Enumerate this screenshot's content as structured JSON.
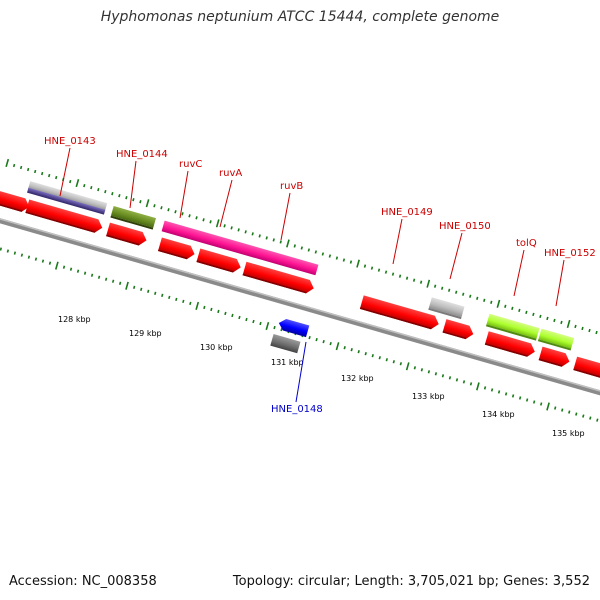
{
  "title": "Hyphomonas neptunium ATCC 15444, complete genome",
  "footer": {
    "accession": "Accession: NC_008358",
    "stats": "Topology: circular; Length: 3,705,021 bp; Genes: 3,552"
  },
  "colors": {
    "forward_gene": "#ff0000",
    "label_red": "#cc0000",
    "label_blue": "#0000cc",
    "tick_green": "#1a7a1a",
    "backbone": "#808080",
    "magenta": "#ff1493",
    "olive": "#6b8e23",
    "lime": "#adff2f",
    "navy": "#4b3c8c",
    "gray_gene": "#b8b8b8",
    "blue_gene": "#0000ff",
    "dark_gray_gene": "#707070"
  },
  "gene_labels": [
    {
      "id": "hne0143",
      "text": "HNE_0143",
      "color": "red"
    },
    {
      "id": "hne0144",
      "text": "HNE_0144",
      "color": "red"
    },
    {
      "id": "ruvc",
      "text": "ruvC",
      "color": "red"
    },
    {
      "id": "ruva",
      "text": "ruvA",
      "color": "red"
    },
    {
      "id": "ruvb",
      "text": "ruvB",
      "color": "red"
    },
    {
      "id": "hne0149",
      "text": "HNE_0149",
      "color": "red"
    },
    {
      "id": "hne0150",
      "text": "HNE_0150",
      "color": "red"
    },
    {
      "id": "tolq",
      "text": "tolQ",
      "color": "red"
    },
    {
      "id": "hne0152",
      "text": "HNE_0152",
      "color": "red"
    },
    {
      "id": "hne0148",
      "text": "HNE_0148",
      "color": "blue"
    }
  ],
  "kbp_labels": [
    "128 kbp",
    "129 kbp",
    "130 kbp",
    "131 kbp",
    "132 kbp",
    "133 kbp",
    "134 kbp",
    "135 kbp"
  ]
}
